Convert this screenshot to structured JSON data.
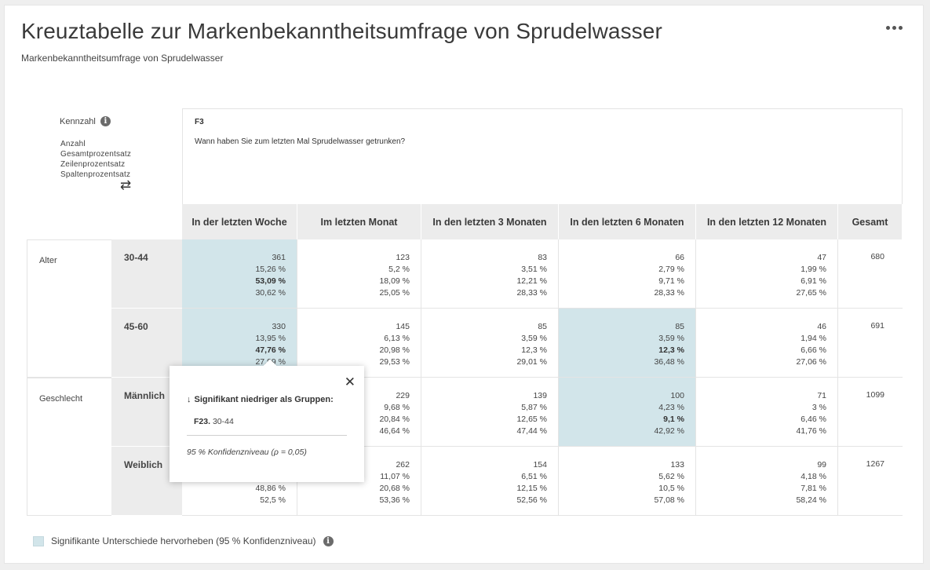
{
  "title": "Kreuztabelle zur Markenbekanntheitsumfrage von Sprudelwasser",
  "subtitle": "Markenbekanntheitsumfrage von Sprudelwasser",
  "metric": {
    "label": "Kennzahl",
    "items": [
      "Anzahl",
      "Gesamtprozentsatz",
      "Zeilenprozentsatz",
      "Spaltenprozentsatz"
    ]
  },
  "question": {
    "id": "F3",
    "text": "Wann haben Sie zum letzten Mal Sprudelwasser getrunken?"
  },
  "columns": [
    "In der letzten Woche",
    "Im letzten Monat",
    "In den letzten 3 Monaten",
    "In den letzten 6 Monaten",
    "In den letzten 12 Monaten",
    "Gesamt"
  ],
  "groups": [
    {
      "label": "Alter",
      "rows": [
        {
          "label": "30-44",
          "total": "680",
          "cells": [
            {
              "values": [
                "361",
                "15,26 %",
                "53,09 %",
                "30,62 %"
              ],
              "highlight": true,
              "bold_index": 2
            },
            {
              "values": [
                "123",
                "5,2 %",
                "18,09 %",
                "25,05 %"
              ],
              "highlight": false,
              "bold_index": -1
            },
            {
              "values": [
                "83",
                "3,51 %",
                "12,21 %",
                "28,33 %"
              ],
              "highlight": false,
              "bold_index": -1
            },
            {
              "values": [
                "66",
                "2,79 %",
                "9,71 %",
                "28,33 %"
              ],
              "highlight": false,
              "bold_index": -1
            },
            {
              "values": [
                "47",
                "1,99 %",
                "6,91 %",
                "27,65 %"
              ],
              "highlight": false,
              "bold_index": -1
            }
          ]
        },
        {
          "label": "45-60",
          "total": "691",
          "cells": [
            {
              "values": [
                "330",
                "13,95 %",
                "47,76 %",
                "27,99 %"
              ],
              "highlight": true,
              "bold_index": 2
            },
            {
              "values": [
                "145",
                "6,13 %",
                "20,98 %",
                "29,53 %"
              ],
              "highlight": false,
              "bold_index": -1
            },
            {
              "values": [
                "85",
                "3,59 %",
                "12,3 %",
                "29,01 %"
              ],
              "highlight": false,
              "bold_index": -1
            },
            {
              "values": [
                "85",
                "3,59 %",
                "12,3 %",
                "36,48 %"
              ],
              "highlight": true,
              "bold_index": 2
            },
            {
              "values": [
                "46",
                "1,94 %",
                "6,66 %",
                "27,06 %"
              ],
              "highlight": false,
              "bold_index": -1
            }
          ]
        }
      ]
    },
    {
      "label": "Geschlecht",
      "rows": [
        {
          "label": "Männlich",
          "total": "1099",
          "cells": [
            {
              "values": [
                "",
                "",
                "",
                ""
              ],
              "highlight": false,
              "bold_index": -1
            },
            {
              "values": [
                "229",
                "9,68 %",
                "20,84 %",
                "46,64 %"
              ],
              "highlight": false,
              "bold_index": -1
            },
            {
              "values": [
                "139",
                "5,87 %",
                "12,65 %",
                "47,44 %"
              ],
              "highlight": false,
              "bold_index": -1
            },
            {
              "values": [
                "100",
                "4,23 %",
                "9,1 %",
                "42,92 %"
              ],
              "highlight": true,
              "bold_index": 2
            },
            {
              "values": [
                "71",
                "3 %",
                "6,46 %",
                "41,76 %"
              ],
              "highlight": false,
              "bold_index": -1
            }
          ]
        },
        {
          "label": "Weiblich",
          "total": "1267",
          "cells": [
            {
              "values": [
                "",
                "",
                "48,86 %",
                "52,5 %"
              ],
              "highlight": false,
              "bold_index": -1
            },
            {
              "values": [
                "262",
                "11,07 %",
                "20,68 %",
                "53,36 %"
              ],
              "highlight": false,
              "bold_index": -1
            },
            {
              "values": [
                "154",
                "6,51 %",
                "12,15 %",
                "52,56 %"
              ],
              "highlight": false,
              "bold_index": -1
            },
            {
              "values": [
                "133",
                "5,62 %",
                "10,5 %",
                "57,08 %"
              ],
              "highlight": false,
              "bold_index": -1
            },
            {
              "values": [
                "99",
                "4,18 %",
                "7,81 %",
                "58,24 %"
              ],
              "highlight": false,
              "bold_index": -1
            }
          ]
        }
      ]
    }
  ],
  "legend": {
    "label": "Signifikante Unterschiede hervorheben (95 % Konfidenzniveau)",
    "checked": true
  },
  "popup": {
    "heading": "Signifikant niedriger als Gruppen:",
    "group_id": "F23.",
    "group_label": "30-44",
    "confidence": "95 % Konfidenzniveau (ρ = 0,05)"
  },
  "colors": {
    "highlight": "#d2e5ea",
    "header_bg": "#ececec"
  },
  "icons": {
    "more": "more-horizontal-icon",
    "info": "info-icon",
    "swap": "swap-arrows-icon",
    "close": "close-icon",
    "down": "arrow-down-icon"
  }
}
